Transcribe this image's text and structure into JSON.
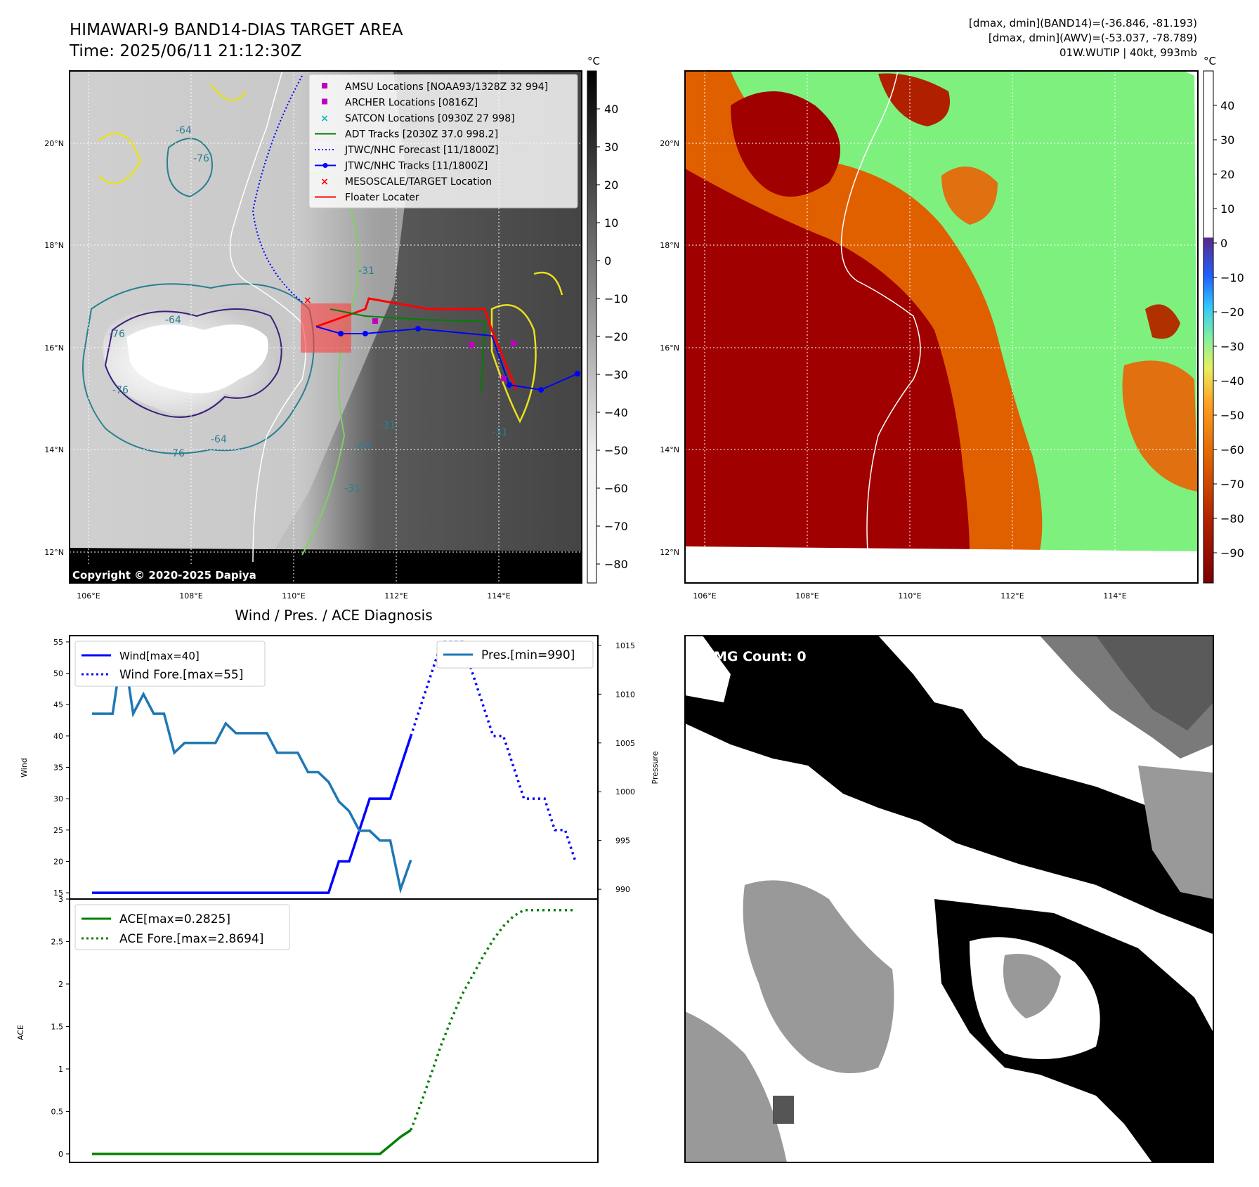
{
  "header": {
    "title_line1": "HIMAWARI-9 BAND14-DIAS TARGET AREA",
    "title_line2": "Time: 2025/06/11 21:12:30Z",
    "info_line1": "[dmax, dmin](BAND14)=(-36.846, -81.193)",
    "info_line2": "[dmax, dmin](AWV)=(-53.037, -78.789)",
    "info_line3": "01W.WUTIP | 40kt, 993mb"
  },
  "map_left": {
    "copyright": "Copyright © 2020-2025 Dapiya",
    "colorbar_unit": "°C",
    "colorbar_ticks": [
      "40",
      "30",
      "20",
      "10",
      "0",
      "−10",
      "−20",
      "−30",
      "−40",
      "−50",
      "−60",
      "−70",
      "−80"
    ],
    "lat_labels": [
      "20°N",
      "18°N",
      "16°N",
      "14°N",
      "12°N"
    ],
    "lon_labels": [
      "106°E",
      "108°E",
      "110°E",
      "112°E",
      "114°E"
    ],
    "contour_labels": [
      "-64",
      "-76",
      "-76",
      "-64",
      "-31",
      "-76",
      "-64",
      "-31",
      "-31",
      "-76",
      "-64",
      "-31"
    ],
    "legend": [
      {
        "label": "AMSU Locations [NOAA93/1328Z 32 994]",
        "marker": "square",
        "color": "#bf00bf"
      },
      {
        "label": "ARCHER Locations [0816Z]",
        "marker": "square",
        "color": "#bf00bf"
      },
      {
        "label": "SATCON Locations [0930Z 27 998]",
        "marker": "x",
        "color": "#00bfbf"
      },
      {
        "label": "ADT Tracks [2030Z 37.0 998.2]",
        "marker": "line",
        "color": "#008000"
      },
      {
        "label": "JTWC/NHC Forecast [11/1800Z]",
        "marker": "dotted",
        "color": "#0000ff"
      },
      {
        "label": "JTWC/NHC Tracks [11/1800Z]",
        "marker": "line-dot",
        "color": "#0000ff"
      },
      {
        "label": "MESOSCALE/TARGET Location",
        "marker": "x",
        "color": "#ff0000"
      },
      {
        "label": "Floater Locater",
        "marker": "line",
        "color": "#ff0000"
      }
    ]
  },
  "map_right": {
    "colorbar_unit": "°C",
    "colorbar_ticks": [
      "40",
      "30",
      "20",
      "10",
      "0",
      "−10",
      "−20",
      "−30",
      "−40",
      "−50",
      "−60",
      "−70",
      "−80",
      "−90"
    ],
    "lat_labels": [
      "20°N",
      "18°N",
      "16°N",
      "14°N",
      "12°N"
    ],
    "lon_labels": [
      "106°E",
      "108°E",
      "110°E",
      "112°E",
      "114°E"
    ]
  },
  "wind_panel": {
    "title": "Wind / Pres. / ACE Diagnosis",
    "ylabel_left": "Wind",
    "ylabel_right": "Pressure",
    "legend_wind": "Wind[max=40]",
    "legend_wind_fore": "Wind Fore.[max=55]",
    "legend_pres": "Pres.[min=990]"
  },
  "ace_panel": {
    "ylabel": "ACE",
    "legend_ace": "ACE[max=0.2825]",
    "legend_ace_fore": "ACE Fore.[max=2.8694]"
  },
  "wmg_panel": {
    "label": "WMG Count: 0"
  },
  "colors": {
    "wind": "#0000ff",
    "pressure": "#1f77b4",
    "ace": "#008000"
  },
  "chart_data": [
    {
      "type": "line",
      "name": "wind",
      "ylim": [
        14,
        56
      ],
      "yticks": [
        15,
        20,
        25,
        30,
        35,
        40,
        45,
        50,
        55
      ],
      "series": [
        {
          "name": "Wind[max=40]",
          "style": "solid",
          "values": [
            15,
            15,
            15,
            15,
            15,
            15,
            15,
            15,
            15,
            15,
            15,
            15,
            15,
            15,
            15,
            15,
            15,
            15,
            15,
            15,
            15,
            15,
            15,
            15,
            20,
            20,
            25,
            30,
            30,
            30,
            35,
            40
          ]
        },
        {
          "name": "Wind Fore.[max=55]",
          "style": "dotted",
          "offset": 31,
          "values": [
            40,
            45,
            50,
            55,
            55,
            55,
            50,
            45,
            40,
            40,
            35,
            30,
            30,
            30,
            25,
            25,
            20
          ]
        }
      ]
    },
    {
      "type": "line",
      "name": "pressure",
      "ylim": [
        989,
        1016
      ],
      "yticks": [
        990,
        995,
        1000,
        1005,
        1010,
        1015
      ],
      "series": [
        {
          "name": "Pres.[min=990]",
          "style": "solid",
          "values": [
            1008,
            1008,
            1008,
            1015,
            1008,
            1010,
            1008,
            1008,
            1004,
            1005,
            1005,
            1005,
            1005,
            1007,
            1006,
            1006,
            1006,
            1006,
            1004,
            1004,
            1004,
            1002,
            1002,
            1001,
            999,
            998,
            996,
            996,
            995,
            995,
            990,
            993
          ]
        }
      ]
    },
    {
      "type": "line",
      "name": "ace",
      "ylim": [
        -0.1,
        3.0
      ],
      "yticks": [
        0.0,
        0.5,
        1.0,
        1.5,
        2.0,
        2.5,
        3.0
      ],
      "series": [
        {
          "name": "ACE[max=0.2825]",
          "style": "solid",
          "values": [
            0,
            0,
            0,
            0,
            0,
            0,
            0,
            0,
            0,
            0,
            0,
            0,
            0,
            0,
            0,
            0,
            0,
            0,
            0,
            0,
            0,
            0,
            0,
            0,
            0,
            0,
            0,
            0,
            0,
            0.1,
            0.2,
            0.28
          ]
        },
        {
          "name": "ACE Fore.[max=2.8694]",
          "style": "dotted",
          "offset": 31,
          "values": [
            0.28,
            0.6,
            0.95,
            1.3,
            1.6,
            1.88,
            2.1,
            2.32,
            2.52,
            2.68,
            2.8,
            2.87,
            2.87,
            2.87,
            2.87,
            2.87,
            2.87
          ]
        }
      ]
    }
  ]
}
